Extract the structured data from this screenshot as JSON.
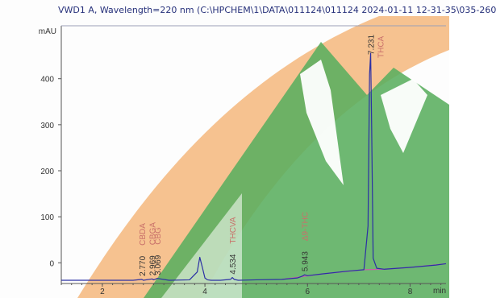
{
  "window": {
    "title": "VWD1 A, Wavelength=220 nm (C:\\HPCHEM\\1\\DATA\\011124\\011124 2024-01-11 12-31-35\\035-260"
  },
  "watermark": {
    "icon": "mountain-logo-icon",
    "colors": {
      "orange": "#f4b77c",
      "green": "#5aae5e"
    }
  },
  "chart_data": {
    "type": "line",
    "title": "",
    "xlabel": "min",
    "ylabel": "mAU",
    "xlim": [
      1.2,
      8.7
    ],
    "ylim": [
      -45,
      515
    ],
    "xticks": [
      2,
      4,
      6,
      8
    ],
    "yticks": [
      0,
      100,
      200,
      300,
      400
    ],
    "xtick_labels": [
      "2",
      "4",
      "6",
      "8"
    ],
    "ytick_labels": [
      "0",
      "100",
      "200",
      "300",
      "400"
    ],
    "grid": false,
    "colors": {
      "trace": "#2b2fa5",
      "integration": "#c860a8",
      "axis": "#555555",
      "compound_label": "#c9706a",
      "time_label": "#333333"
    },
    "series": [
      {
        "x": [
          1.2,
          2.0,
          2.6,
          2.77,
          2.8,
          2.97,
          3.0,
          3.07,
          3.3,
          3.7,
          3.85,
          3.9,
          3.95,
          4.0,
          4.05,
          4.12,
          4.3,
          4.5,
          4.534,
          4.57,
          4.65,
          5.0,
          5.5,
          5.8,
          5.9,
          5.943,
          6.0,
          6.3,
          6.8,
          7.1,
          7.18,
          7.21,
          7.231,
          7.25,
          7.28,
          7.35,
          7.5,
          8.0,
          8.5,
          8.7
        ],
        "values": [
          -38,
          -38,
          -38,
          -36,
          -38,
          -35,
          -37,
          -34,
          -38,
          -37,
          -20,
          12,
          -10,
          -33,
          -37,
          -38,
          -38,
          -36,
          -32,
          -36,
          -38,
          -37,
          -36,
          -33,
          -29,
          -26,
          -28,
          -24,
          -18,
          -15,
          80,
          410,
          455,
          300,
          10,
          -12,
          -14,
          -10,
          -5,
          -2
        ]
      }
    ],
    "peaks": [
      {
        "time_label": "2.770",
        "time": 2.77,
        "compound": "CBDA"
      },
      {
        "time_label": "2.969",
        "time": 2.969,
        "compound": "CBGA"
      },
      {
        "time_label": "3.069",
        "time": 3.069,
        "compound": "CBG"
      },
      {
        "time_label": "4.534",
        "time": 4.534,
        "compound": "THCVA"
      },
      {
        "time_label": "5.943",
        "time": 5.943,
        "compound": "Δ9-THC"
      },
      {
        "time_label": "7.231",
        "time": 7.231,
        "compound": "THCA"
      }
    ]
  }
}
